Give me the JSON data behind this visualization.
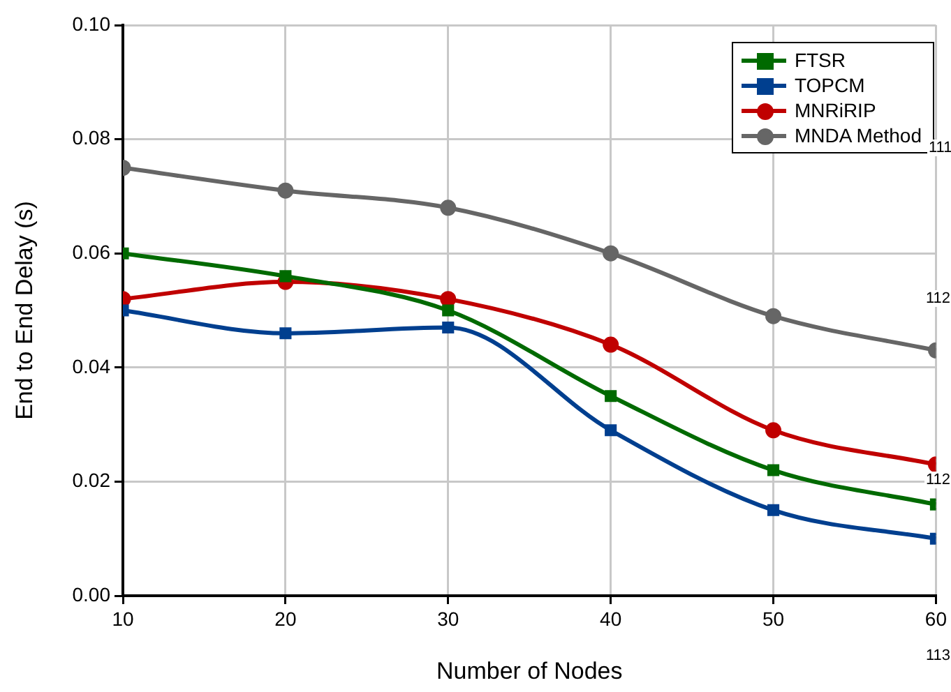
{
  "chart_data": {
    "type": "line",
    "xlabel": "Number of Nodes",
    "ylabel": "End to End Delay (s)",
    "x": [
      10,
      20,
      30,
      40,
      50,
      60
    ],
    "xlim": [
      10,
      60
    ],
    "xticks": [
      10,
      20,
      30,
      40,
      50,
      60
    ],
    "ylim": [
      0,
      0.1
    ],
    "yticks": [
      {
        "value": 0,
        "label": "0.00"
      },
      {
        "value": 0.02,
        "label": "0.02"
      },
      {
        "value": 0.04,
        "label": "0.04"
      },
      {
        "value": 0.06,
        "label": "0.06"
      },
      {
        "value": 0.08,
        "label": "0.08"
      },
      {
        "value": 0.1,
        "label": "0.10"
      }
    ],
    "grid": true,
    "legend": "top right",
    "line_style": "solid",
    "series": [
      {
        "name": "FTSR",
        "color": "#006a00",
        "marker": "square",
        "values": [
          0.06,
          0.056,
          0.05,
          0.035,
          0.022,
          0.016
        ]
      },
      {
        "name": "TOPCM",
        "color": "#003f8f",
        "marker": "square",
        "values": [
          0.05,
          0.046,
          0.047,
          0.029,
          0.015,
          0.01
        ]
      },
      {
        "name": "MNRiRIP",
        "color": "#c00000",
        "marker": "circle",
        "values": [
          0.052,
          0.055,
          0.052,
          0.044,
          0.029,
          0.023
        ]
      },
      {
        "name": "MNDA Method",
        "color": "#666666",
        "marker": "circle",
        "values": [
          0.075,
          0.071,
          0.068,
          0.06,
          0.049,
          0.043
        ]
      }
    ],
    "annotations": [
      "111",
      "112",
      "112",
      "113"
    ]
  }
}
